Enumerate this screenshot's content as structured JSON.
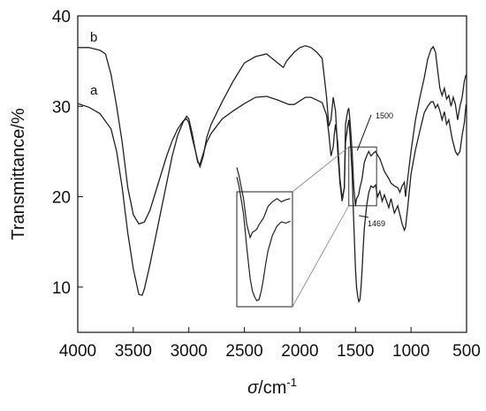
{
  "chart_data": {
    "type": "line",
    "title": "",
    "xlabel": {
      "symbol": "σ",
      "unit": "/cm",
      "exp": "-1"
    },
    "ylabel": "Transmittance/%",
    "xlim": [
      4000,
      500
    ],
    "ylim": [
      5,
      40
    ],
    "xticks": [
      4000,
      3500,
      3000,
      2500,
      2000,
      1500,
      1000,
      500
    ],
    "yticks": [
      10,
      20,
      30,
      40
    ],
    "grid": false,
    "legend": "none",
    "series": [
      {
        "name": "a",
        "points": [
          [
            4000,
            30.3
          ],
          [
            3900,
            29.9
          ],
          [
            3800,
            29.2
          ],
          [
            3700,
            27.5
          ],
          [
            3650,
            25
          ],
          [
            3600,
            21
          ],
          [
            3550,
            16
          ],
          [
            3500,
            12
          ],
          [
            3450,
            9.2
          ],
          [
            3420,
            9.1
          ],
          [
            3400,
            9.8
          ],
          [
            3350,
            12.5
          ],
          [
            3300,
            15.5
          ],
          [
            3250,
            18.5
          ],
          [
            3200,
            21.5
          ],
          [
            3150,
            24.5
          ],
          [
            3100,
            26.8
          ],
          [
            3050,
            28.3
          ],
          [
            3020,
            28.9
          ],
          [
            3000,
            28.6
          ],
          [
            2970,
            27
          ],
          [
            2940,
            25
          ],
          [
            2920,
            23.8
          ],
          [
            2900,
            23.6
          ],
          [
            2870,
            24.8
          ],
          [
            2840,
            26
          ],
          [
            2800,
            27
          ],
          [
            2700,
            28.6
          ],
          [
            2600,
            29.5
          ],
          [
            2500,
            30.3
          ],
          [
            2400,
            31
          ],
          [
            2300,
            31.1
          ],
          [
            2200,
            30.7
          ],
          [
            2100,
            30.2
          ],
          [
            2050,
            30.2
          ],
          [
            2000,
            30.6
          ],
          [
            1950,
            31
          ],
          [
            1900,
            31
          ],
          [
            1850,
            30.7
          ],
          [
            1800,
            30.4
          ],
          [
            1760,
            29
          ],
          [
            1740,
            27
          ],
          [
            1720,
            24.5
          ],
          [
            1700,
            25.5
          ],
          [
            1690,
            27
          ],
          [
            1680,
            28
          ],
          [
            1660,
            26
          ],
          [
            1640,
            22
          ],
          [
            1620,
            19.8
          ],
          [
            1600,
            21
          ],
          [
            1590,
            26
          ],
          [
            1570,
            27.8
          ],
          [
            1560,
            28.5
          ],
          [
            1550,
            27
          ],
          [
            1530,
            22.5
          ],
          [
            1515,
            17
          ],
          [
            1500,
            12
          ],
          [
            1490,
            10
          ],
          [
            1480,
            9
          ],
          [
            1470,
            8.4
          ],
          [
            1460,
            8.6
          ],
          [
            1450,
            10
          ],
          [
            1440,
            12
          ],
          [
            1430,
            14.5
          ],
          [
            1420,
            16.5
          ],
          [
            1400,
            19
          ],
          [
            1380,
            20.5
          ],
          [
            1360,
            21.2
          ],
          [
            1340,
            21
          ],
          [
            1320,
            21.3
          ],
          [
            1300,
            20
          ],
          [
            1280,
            20.6
          ],
          [
            1260,
            19.5
          ],
          [
            1240,
            20.2
          ],
          [
            1200,
            18.8
          ],
          [
            1180,
            19.8
          ],
          [
            1150,
            18.2
          ],
          [
            1120,
            19
          ],
          [
            1100,
            18
          ],
          [
            1080,
            17
          ],
          [
            1060,
            16.3
          ],
          [
            1050,
            16.6
          ],
          [
            1030,
            18.8
          ],
          [
            1000,
            22.5
          ],
          [
            960,
            25.2
          ],
          [
            920,
            27.3
          ],
          [
            880,
            29.3
          ],
          [
            850,
            30
          ],
          [
            820,
            30.5
          ],
          [
            800,
            30.5
          ],
          [
            780,
            29.8
          ],
          [
            760,
            30.2
          ],
          [
            740,
            29.5
          ],
          [
            720,
            28.5
          ],
          [
            700,
            29.4
          ],
          [
            680,
            28
          ],
          [
            660,
            28.5
          ],
          [
            630,
            26.4
          ],
          [
            600,
            25
          ],
          [
            580,
            24.6
          ],
          [
            560,
            25
          ],
          [
            540,
            26.8
          ],
          [
            520,
            28.2
          ],
          [
            505,
            30.2
          ]
        ]
      },
      {
        "name": "b",
        "points": [
          [
            4000,
            36.5
          ],
          [
            3900,
            36.5
          ],
          [
            3800,
            36.2
          ],
          [
            3750,
            35.8
          ],
          [
            3700,
            33.5
          ],
          [
            3650,
            30
          ],
          [
            3600,
            26
          ],
          [
            3550,
            21
          ],
          [
            3500,
            18
          ],
          [
            3450,
            17
          ],
          [
            3400,
            17.2
          ],
          [
            3350,
            18.5
          ],
          [
            3300,
            20.5
          ],
          [
            3250,
            22.5
          ],
          [
            3200,
            24.5
          ],
          [
            3150,
            26.2
          ],
          [
            3100,
            27.5
          ],
          [
            3050,
            28.4
          ],
          [
            3020,
            28.6
          ],
          [
            3000,
            28.2
          ],
          [
            2970,
            26.5
          ],
          [
            2940,
            25
          ],
          [
            2920,
            24
          ],
          [
            2900,
            23.3
          ],
          [
            2870,
            24.5
          ],
          [
            2840,
            26.5
          ],
          [
            2800,
            28
          ],
          [
            2700,
            30.5
          ],
          [
            2600,
            32.8
          ],
          [
            2500,
            34.8
          ],
          [
            2400,
            35.5
          ],
          [
            2300,
            35.8
          ],
          [
            2250,
            35.3
          ],
          [
            2200,
            34.8
          ],
          [
            2150,
            34.3
          ],
          [
            2120,
            35
          ],
          [
            2100,
            35.3
          ],
          [
            2050,
            36
          ],
          [
            2000,
            36.5
          ],
          [
            1950,
            36.7
          ],
          [
            1900,
            36.5
          ],
          [
            1850,
            36
          ],
          [
            1800,
            35.3
          ],
          [
            1760,
            31
          ],
          [
            1740,
            27.8
          ],
          [
            1720,
            28.5
          ],
          [
            1700,
            31
          ],
          [
            1680,
            29.5
          ],
          [
            1660,
            25
          ],
          [
            1640,
            21.5
          ],
          [
            1620,
            19.5
          ],
          [
            1600,
            21
          ],
          [
            1590,
            28
          ],
          [
            1570,
            29.5
          ],
          [
            1560,
            29.8
          ],
          [
            1550,
            28.5
          ],
          [
            1530,
            25
          ],
          [
            1515,
            21
          ],
          [
            1500,
            19
          ],
          [
            1490,
            19.8
          ],
          [
            1480,
            20
          ],
          [
            1470,
            20.3
          ],
          [
            1460,
            21
          ],
          [
            1450,
            21.5
          ],
          [
            1440,
            22
          ],
          [
            1420,
            23.8
          ],
          [
            1400,
            24.5
          ],
          [
            1380,
            25
          ],
          [
            1360,
            24.5
          ],
          [
            1340,
            24.8
          ],
          [
            1320,
            25
          ],
          [
            1300,
            24.6
          ],
          [
            1280,
            24.2
          ],
          [
            1260,
            23.5
          ],
          [
            1240,
            22.8
          ],
          [
            1200,
            22
          ],
          [
            1180,
            21.5
          ],
          [
            1150,
            21.2
          ],
          [
            1120,
            21
          ],
          [
            1100,
            20.5
          ],
          [
            1080,
            21.2
          ],
          [
            1060,
            21.6
          ],
          [
            1050,
            20
          ],
          [
            1030,
            22
          ],
          [
            1000,
            25
          ],
          [
            960,
            28.5
          ],
          [
            920,
            31
          ],
          [
            880,
            33.2
          ],
          [
            850,
            35.2
          ],
          [
            820,
            36.3
          ],
          [
            800,
            36.6
          ],
          [
            780,
            36
          ],
          [
            760,
            34
          ],
          [
            740,
            32
          ],
          [
            720,
            31.2
          ],
          [
            700,
            32
          ],
          [
            680,
            30.8
          ],
          [
            660,
            31.2
          ],
          [
            640,
            30
          ],
          [
            620,
            31
          ],
          [
            600,
            30.2
          ],
          [
            580,
            28.5
          ],
          [
            560,
            30
          ],
          [
            540,
            31
          ],
          [
            520,
            32.8
          ],
          [
            505,
            33.5
          ]
        ]
      }
    ],
    "annotations": [
      {
        "text": "1500",
        "target": [
          1500,
          25.5
        ]
      },
      {
        "text": "1469",
        "target": [
          1469,
          18.5
        ]
      }
    ],
    "inset": {
      "source_x_range": [
        1560,
        1310
      ],
      "source_y_range": [
        19,
        25.5
      ],
      "note": "magnified view of curve b between 1500 and 1469"
    }
  }
}
